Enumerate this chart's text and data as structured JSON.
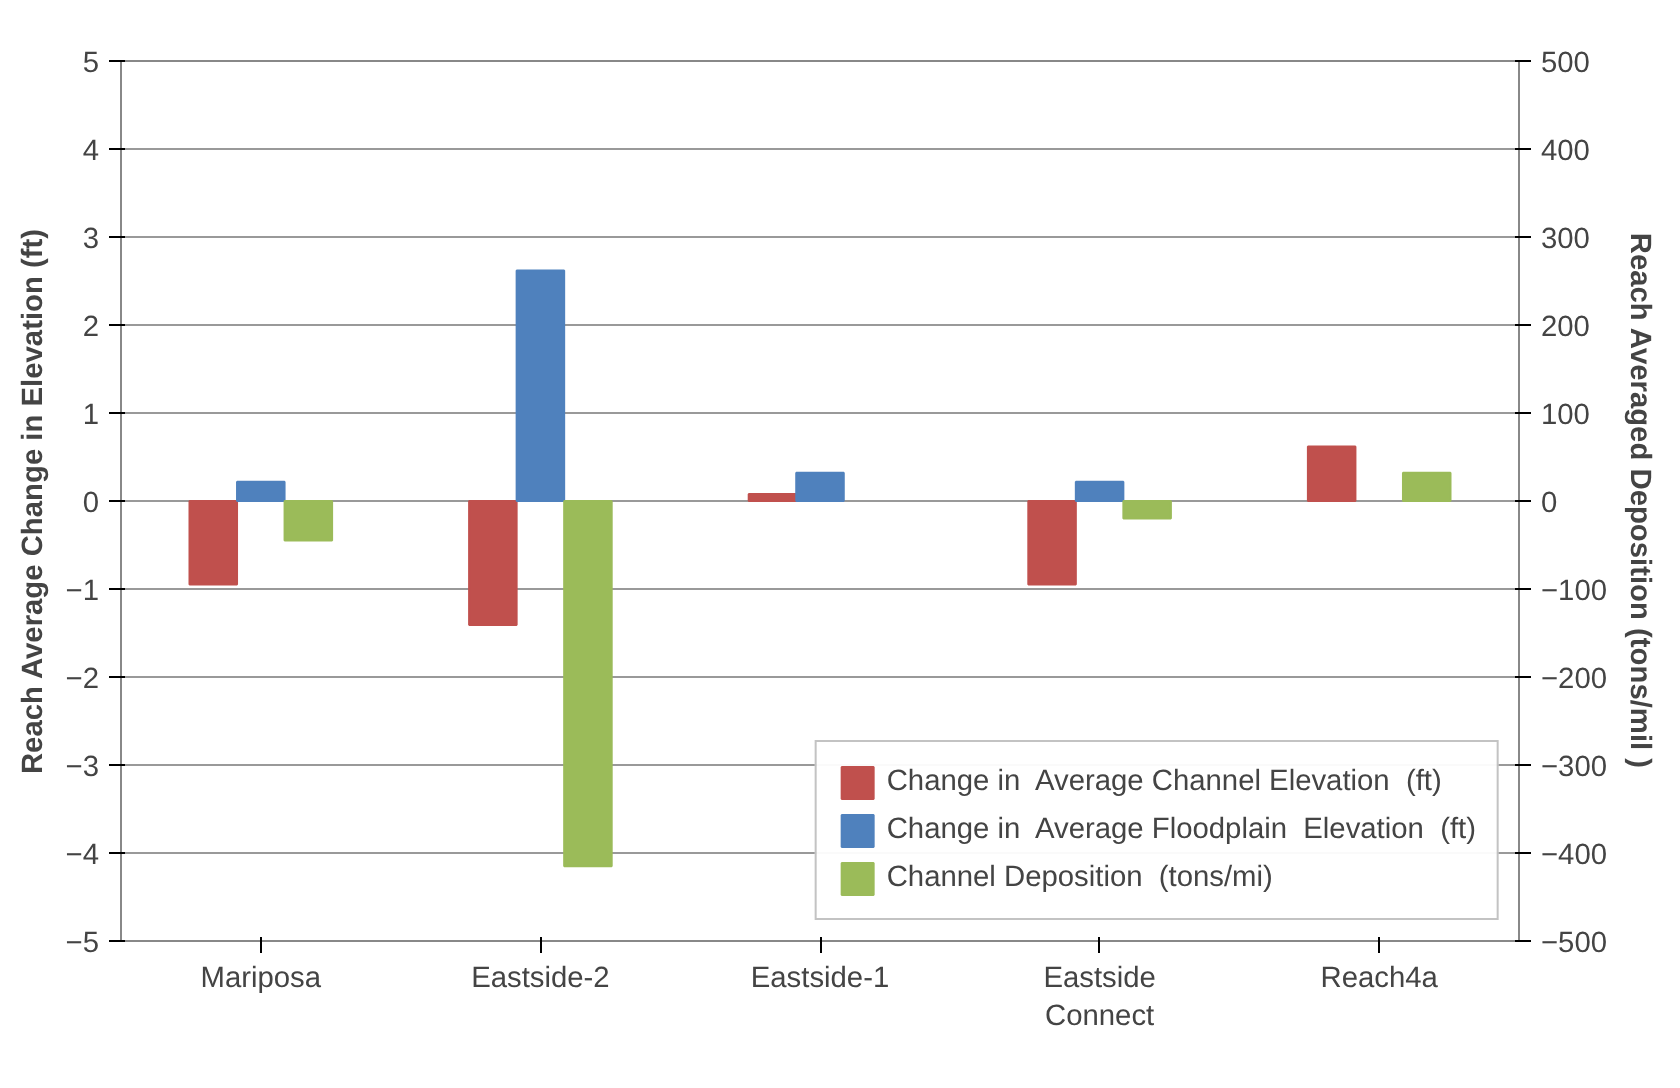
{
  "chart_data": {
    "type": "bar",
    "ylabel": "Reach Average Change in Elevation (ft)",
    "y2label": "Reach Averaged Deposition (tons/mil )",
    "categories": [
      "Mariposa",
      "Eastside-2",
      "Eastside-1",
      "Eastside Connect",
      "Reach4a"
    ],
    "series": [
      {
        "name": "Change in  Average Channel Elevation  (ft)",
        "color": "#c0504d",
        "values": [
          -0.95,
          -1.41,
          0.08,
          -0.95,
          0.62
        ]
      },
      {
        "name": "Change in  Average Floodplain  Elevation  (ft)",
        "color": "#4f81bd",
        "values": [
          0.22,
          2.62,
          0.32,
          0.22,
          null
        ]
      },
      {
        "name": "Channel Deposition  (tons/mi)",
        "color": "#9bbb59",
        "axis": "y2",
        "values": [
          -45,
          -415,
          null,
          -20,
          32
        ]
      }
    ],
    "ylim": [
      -5,
      5
    ],
    "yticks": [
      -5,
      -4,
      -3,
      -2,
      -1,
      0,
      1,
      2,
      3,
      4,
      5
    ],
    "y2lim": [
      -500,
      500
    ],
    "y2ticks": [
      -500,
      -400,
      -300,
      -200,
      -100,
      0,
      100,
      200,
      300,
      400,
      500
    ],
    "grid": "y",
    "legend": "bottom right"
  }
}
